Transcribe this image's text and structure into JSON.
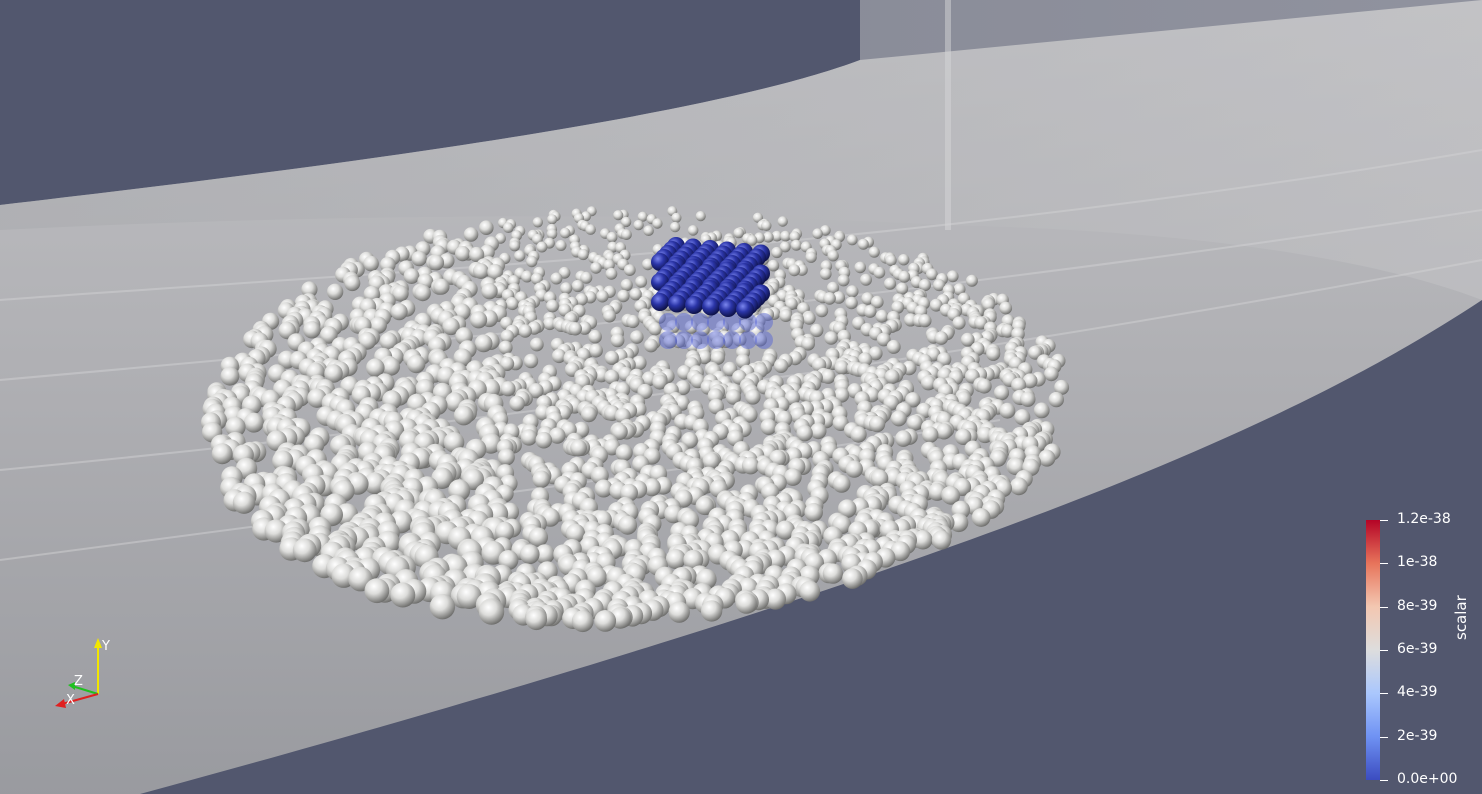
{
  "viewport": {
    "background_color": "#52576e",
    "channel_color": "#a8a8ab",
    "particle_color": "#e4e4e2",
    "cluster_color": "#2a349a"
  },
  "colorbar": {
    "title": "scalar",
    "labels": [
      "1.2e-38",
      "1e-38",
      "8e-39",
      "6e-39",
      "4e-39",
      "2e-39",
      "0.0e+00"
    ],
    "colormap": [
      "#b40426",
      "#e7745b",
      "#f3c7b1",
      "#dddddd",
      "#aac7fd",
      "#6f92f3",
      "#3b4cc0"
    ]
  },
  "orientation_axes": {
    "x_label": "X",
    "y_label": "Y",
    "z_label": "Z",
    "x_color": "#e02020",
    "y_color": "#f2e600",
    "z_color": "#20c020"
  }
}
